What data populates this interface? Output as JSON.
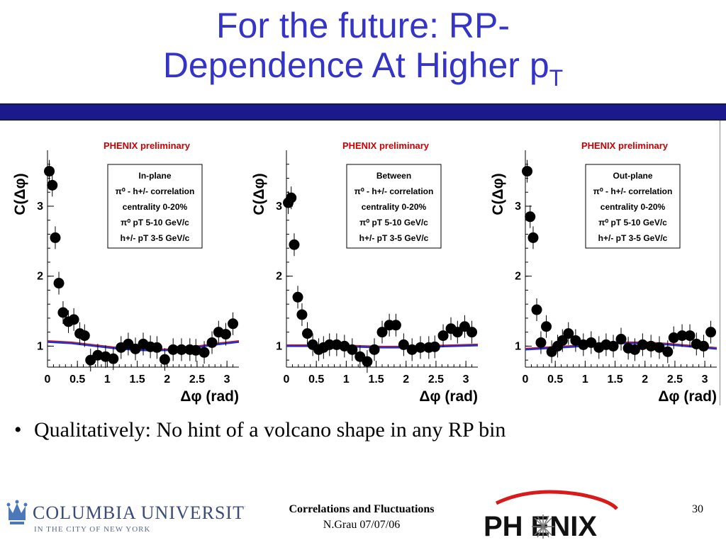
{
  "slide": {
    "title_line1": "For the future: RP-",
    "title_line2": "Dependence At Higher p",
    "title_sub": "T",
    "bullet": "Qualitatively: No hint of a volcano shape in any RP bin",
    "footer_title": "Correlations and Fluctuations",
    "footer_author_date": "N.Grau 07/07/06",
    "page_number": "30",
    "columbia_line1": "COLUMBIA UNIVERSITY",
    "columbia_line2": "IN THE CITY OF NEW YORK",
    "phenix_logo": "PH  ENIX"
  },
  "colors": {
    "title": "#3434c8",
    "bar": "#1a1a8c",
    "fit_blue": "#1f2fd0",
    "fit_red": "#d01818",
    "preliminary": "#cc0000"
  },
  "chart_data": [
    {
      "type": "scatter",
      "preliminary_label": "PHENIX preliminary",
      "legend_lines": [
        "In-plane",
        "π⁰ - h+/- correlation",
        "centrality 0-20%",
        "π⁰ pT 5-10 GeV/c",
        "h+/- pT 3-5 GeV/c"
      ],
      "xlabel": "Δφ (rad)",
      "ylabel": "C(Δφ)",
      "xlim": [
        0,
        3.2
      ],
      "ylim": [
        0.7,
        3.8
      ],
      "xticks": [
        "0",
        "0.5",
        "1",
        "1.5",
        "2",
        "2.5",
        "3"
      ],
      "yticks": [
        "1",
        "2",
        "3"
      ],
      "x": [
        0.03,
        0.08,
        0.13,
        0.19,
        0.26,
        0.35,
        0.44,
        0.54,
        0.62,
        0.72,
        0.84,
        0.97,
        1.1,
        1.23,
        1.35,
        1.47,
        1.6,
        1.72,
        1.83,
        1.96,
        2.1,
        2.24,
        2.38,
        2.48,
        2.62,
        2.75,
        2.86,
        2.98,
        3.1
      ],
      "y": [
        3.5,
        3.3,
        2.55,
        1.9,
        1.48,
        1.35,
        1.38,
        1.18,
        1.15,
        0.8,
        0.87,
        0.85,
        0.82,
        0.98,
        1.03,
        0.96,
        1.03,
        0.99,
        0.98,
        0.81,
        0.95,
        0.95,
        0.95,
        0.94,
        0.91,
        1.05,
        1.2,
        1.17,
        1.32
      ],
      "fit": [
        1.06,
        1.04,
        1.0,
        0.96,
        0.94,
        0.94,
        0.97,
        1.02,
        1.06
      ]
    },
    {
      "type": "scatter",
      "preliminary_label": "PHENIX preliminary",
      "legend_lines": [
        "Between",
        "π⁰ - h+/- correlation",
        "centrality 0-20%",
        "π⁰ pT 5-10 GeV/c",
        "h+/- pT 3-5 GeV/c"
      ],
      "xlabel": "Δφ (rad)",
      "ylabel": "C(Δφ)",
      "xlim": [
        0,
        3.2
      ],
      "ylim": [
        0.7,
        3.8
      ],
      "xticks": [
        "0",
        "0.5",
        "1",
        "1.5",
        "2",
        "2.5",
        "3"
      ],
      "yticks": [
        "1",
        "2",
        "3"
      ],
      "x": [
        0.03,
        0.08,
        0.13,
        0.19,
        0.26,
        0.35,
        0.44,
        0.54,
        0.62,
        0.72,
        0.84,
        0.97,
        1.1,
        1.23,
        1.35,
        1.47,
        1.6,
        1.72,
        1.83,
        1.96,
        2.1,
        2.24,
        2.38,
        2.48,
        2.62,
        2.75,
        2.86,
        2.98,
        3.1
      ],
      "y": [
        3.05,
        3.12,
        2.45,
        1.7,
        1.45,
        1.18,
        1.02,
        0.95,
        0.98,
        1.02,
        1.02,
        1.0,
        0.95,
        0.85,
        0.78,
        0.95,
        1.2,
        1.3,
        1.3,
        1.02,
        0.95,
        0.98,
        0.98,
        0.99,
        1.15,
        1.25,
        1.2,
        1.28,
        1.2
      ],
      "fit": [
        1.0,
        1.0,
        1.0,
        0.99,
        0.98,
        0.98,
        0.99,
        1.0,
        1.01
      ]
    },
    {
      "type": "scatter",
      "preliminary_label": "PHENIX preliminary",
      "legend_lines": [
        "Out-plane",
        "π⁰ - h+/- correlation",
        "centrality 0-20%",
        "π⁰ pT 5-10 GeV/c",
        "h+/- pT 3-5 GeV/c"
      ],
      "xlabel": "Δφ (rad)",
      "ylabel": "C(Δφ)",
      "xlim": [
        0,
        3.2
      ],
      "ylim": [
        0.7,
        3.8
      ],
      "xticks": [
        "0",
        "0.5",
        "1",
        "1.5",
        "2",
        "2.5",
        "3"
      ],
      "yticks": [
        "1",
        "2",
        "3"
      ],
      "x": [
        0.03,
        0.08,
        0.13,
        0.19,
        0.26,
        0.35,
        0.44,
        0.54,
        0.62,
        0.72,
        0.84,
        0.97,
        1.1,
        1.23,
        1.35,
        1.47,
        1.6,
        1.72,
        1.83,
        1.96,
        2.1,
        2.24,
        2.38,
        2.48,
        2.62,
        2.75,
        2.86,
        2.98,
        3.1
      ],
      "y": [
        3.5,
        2.85,
        2.55,
        1.52,
        1.05,
        1.28,
        0.92,
        1.0,
        1.08,
        1.18,
        1.08,
        1.02,
        1.05,
        0.98,
        1.02,
        1.0,
        1.1,
        0.97,
        0.95,
        1.02,
        1.0,
        0.98,
        0.92,
        1.12,
        1.15,
        1.15,
        1.03,
        1.0,
        1.2
      ],
      "fit": [
        0.95,
        0.97,
        0.99,
        1.02,
        1.04,
        1.04,
        1.02,
        0.99,
        0.96
      ]
    }
  ]
}
